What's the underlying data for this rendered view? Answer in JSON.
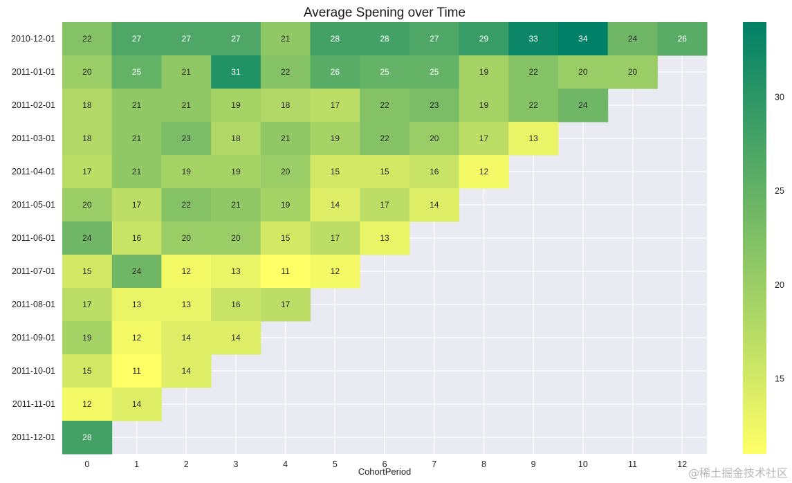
{
  "chart_data": {
    "type": "heatmap",
    "title": "Average Spening over Time",
    "xlabel": "CohortPeriod",
    "ylabel": "",
    "x_categories": [
      "0",
      "1",
      "2",
      "3",
      "4",
      "5",
      "6",
      "7",
      "8",
      "9",
      "10",
      "11",
      "12"
    ],
    "y_categories": [
      "2010-12-01",
      "2011-01-01",
      "2011-02-01",
      "2011-03-01",
      "2011-04-01",
      "2011-05-01",
      "2011-06-01",
      "2011-07-01",
      "2011-08-01",
      "2011-09-01",
      "2011-10-01",
      "2011-11-01",
      "2011-12-01"
    ],
    "values": [
      [
        22,
        27,
        27,
        27,
        21,
        28,
        28,
        27,
        29,
        33,
        34,
        24,
        26
      ],
      [
        20,
        25,
        21,
        31,
        22,
        26,
        25,
        25,
        19,
        22,
        20,
        20,
        null
      ],
      [
        18,
        21,
        21,
        19,
        18,
        17,
        22,
        23,
        19,
        22,
        24,
        null,
        null
      ],
      [
        18,
        21,
        23,
        18,
        21,
        19,
        22,
        20,
        17,
        13,
        null,
        null,
        null
      ],
      [
        17,
        21,
        19,
        19,
        20,
        15,
        15,
        16,
        12,
        null,
        null,
        null,
        null
      ],
      [
        20,
        17,
        22,
        21,
        19,
        14,
        17,
        14,
        null,
        null,
        null,
        null,
        null
      ],
      [
        24,
        16,
        20,
        20,
        15,
        17,
        13,
        null,
        null,
        null,
        null,
        null,
        null
      ],
      [
        15,
        24,
        12,
        13,
        11,
        12,
        null,
        null,
        null,
        null,
        null,
        null,
        null
      ],
      [
        17,
        13,
        13,
        16,
        17,
        null,
        null,
        null,
        null,
        null,
        null,
        null,
        null
      ],
      [
        19,
        12,
        14,
        14,
        null,
        null,
        null,
        null,
        null,
        null,
        null,
        null,
        null
      ],
      [
        15,
        11,
        14,
        null,
        null,
        null,
        null,
        null,
        null,
        null,
        null,
        null,
        null
      ],
      [
        12,
        14,
        null,
        null,
        null,
        null,
        null,
        null,
        null,
        null,
        null,
        null,
        null
      ],
      [
        28,
        null,
        null,
        null,
        null,
        null,
        null,
        null,
        null,
        null,
        null,
        null,
        null
      ]
    ],
    "colormap": [
      "#ffff66",
      "#008066"
    ],
    "vmin": 11,
    "vmax": 34,
    "colorbar_ticks": [
      15,
      20,
      25,
      30
    ],
    "annotations": true,
    "grid": true,
    "background": "#eaeaf2"
  },
  "watermark": "@稀土掘金技术社区"
}
